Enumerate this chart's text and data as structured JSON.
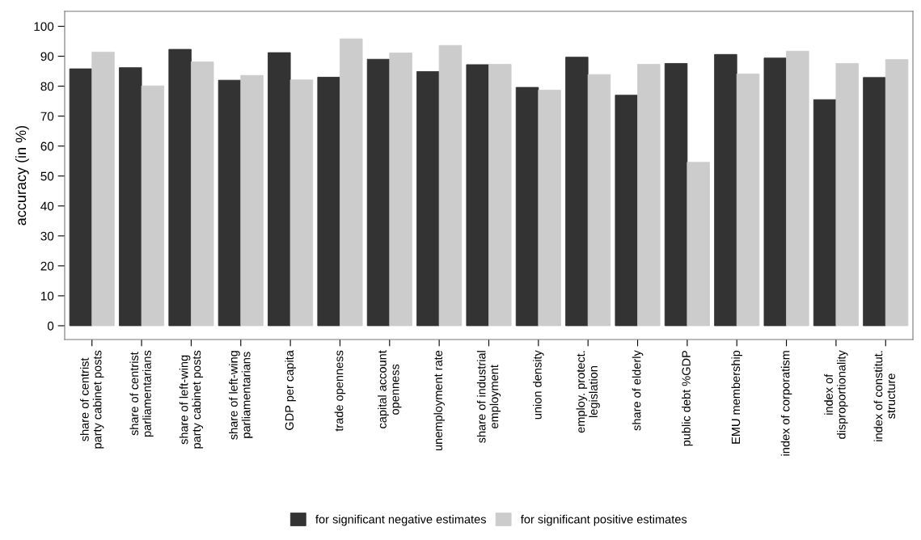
{
  "chart_data": {
    "type": "bar",
    "ylabel": "accuracy (in %)",
    "categories": [
      "share of centrist\nparty cabinet posts",
      "share of centrist\nparliamentarians",
      "share of left-wing\nparty cabinet posts",
      "share of left-wing\nparliamentarians",
      "GDP per capita",
      "trade openness",
      "capital account\nopenness",
      "unemployment rate",
      "share of industrial\nemployment",
      "union density",
      "employ. protect.\nlegislation",
      "share of elderly",
      "public debt %GDP",
      "EMU membership",
      "index of corporatism",
      "index of\ndisproportionality",
      "index of constitut.\nstructure"
    ],
    "series": [
      {
        "name": "for significant negative estimates",
        "color": "#333333",
        "values": [
          85.8,
          86.2,
          92.3,
          82.0,
          91.2,
          83.0,
          89.0,
          84.9,
          87.2,
          79.6,
          89.7,
          77.0,
          87.6,
          90.6,
          89.4,
          75.5,
          82.9
        ]
      },
      {
        "name": "for significant positive estimates",
        "color": "#cccccc",
        "values": [
          91.4,
          80.1,
          88.1,
          83.6,
          82.1,
          95.8,
          91.1,
          93.6,
          87.3,
          78.7,
          83.9,
          87.3,
          54.6,
          84.1,
          91.7,
          87.6,
          88.9
        ]
      }
    ],
    "ylim": [
      -4.6,
      105
    ],
    "yticks": [
      0,
      10,
      20,
      30,
      40,
      50,
      60,
      70,
      80,
      90,
      100
    ],
    "grid": false,
    "legend": "bottom"
  }
}
